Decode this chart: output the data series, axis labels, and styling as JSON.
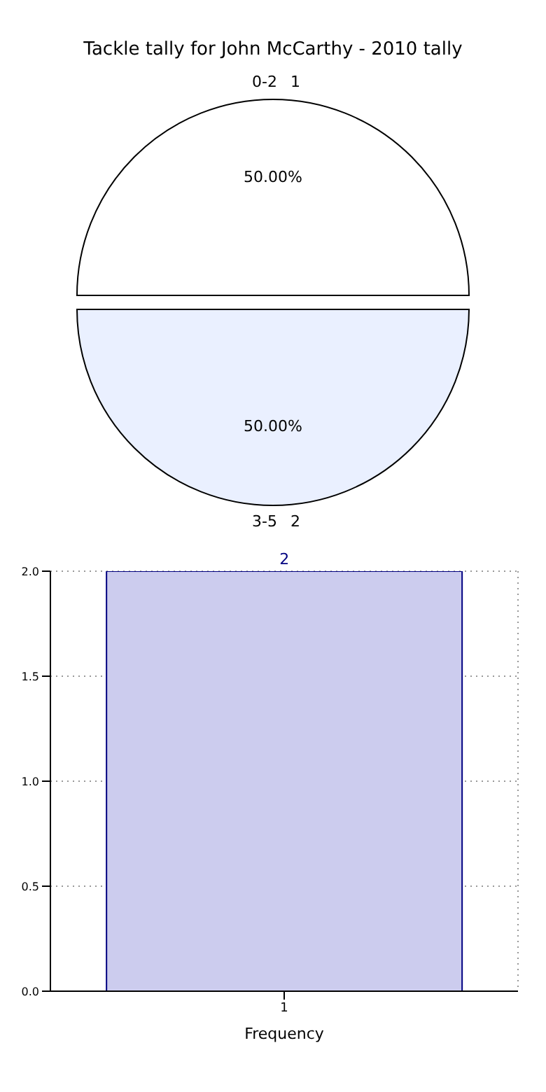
{
  "chart_data": [
    {
      "type": "pie",
      "title": "Tackle tally for John McCarthy - 2010 tally",
      "categories": [
        "0-2",
        "3-5"
      ],
      "values": [
        50,
        50
      ],
      "colors": [
        "#ffffff",
        "#eaf0ff"
      ],
      "value_labels": [
        "50.00%",
        "50.00%"
      ],
      "annotations": [
        "1",
        "2"
      ]
    },
    {
      "type": "bar",
      "categories": [
        "1"
      ],
      "values": [
        2
      ],
      "color": "#ccccee",
      "xlabel": "Frequency",
      "ylim": [
        0,
        2
      ],
      "yticks": [
        {
          "value": 0,
          "label": "0.0"
        },
        {
          "value": 0.5,
          "label": "0.5"
        },
        {
          "value": 1,
          "label": "1.0"
        },
        {
          "value": 1.5,
          "label": "1.5"
        },
        {
          "value": 2,
          "label": "2.0"
        }
      ],
      "grid": true,
      "data_labels": true
    }
  ]
}
